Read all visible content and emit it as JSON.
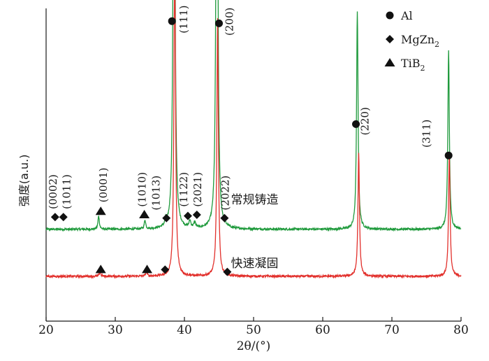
{
  "chart_data": {
    "type": "line",
    "xlabel": "2θ/(°)",
    "ylabel": "强度(a.u.)",
    "xlim": [
      20,
      80
    ],
    "x_ticks": [
      "20",
      "30",
      "40",
      "50",
      "60",
      "70",
      "80"
    ],
    "grid": false,
    "legend": {
      "placement": "top-right",
      "entries": [
        {
          "marker": "circle",
          "label": "Al",
          "phase": "al"
        },
        {
          "marker": "diamond",
          "label": "MgZn",
          "sub": "2",
          "phase": "mgzn2"
        },
        {
          "marker": "triangle",
          "label": "TiB",
          "sub": "2",
          "phase": "tib2"
        }
      ]
    },
    "series": [
      {
        "name": "常规铸造",
        "color": "#1f9a3c",
        "baseline": 0.62,
        "peaks": [
          {
            "x": 27.6,
            "h": 0.12,
            "w": 0.12
          },
          {
            "x": 34.3,
            "h": 0.08,
            "w": 0.12
          },
          {
            "x": 37.3,
            "h": 0.05,
            "w": 0.12
          },
          {
            "x": 38.5,
            "h": 6.0,
            "w": 0.13
          },
          {
            "x": 40.8,
            "h": 0.06,
            "w": 0.15
          },
          {
            "x": 41.5,
            "h": 0.05,
            "w": 0.15
          },
          {
            "x": 44.7,
            "h": 6.0,
            "w": 0.13
          },
          {
            "x": 65.0,
            "h": 1.95,
            "w": 0.13
          },
          {
            "x": 78.2,
            "h": 1.6,
            "w": 0.13
          }
        ],
        "label_x": 44.5,
        "label_y": 0.85
      },
      {
        "name": "快速凝固",
        "color": "#e2302c",
        "baseline": 0.2,
        "peaks": [
          {
            "x": 27.8,
            "h": 0.04,
            "w": 0.12
          },
          {
            "x": 34.5,
            "h": 0.04,
            "w": 0.12
          },
          {
            "x": 38.6,
            "h": 3.1,
            "w": 0.13
          },
          {
            "x": 44.8,
            "h": 2.3,
            "w": 0.13
          },
          {
            "x": 65.2,
            "h": 1.1,
            "w": 0.13
          },
          {
            "x": 78.3,
            "h": 1.1,
            "w": 0.13
          }
        ],
        "label_x": 44.5,
        "label_y": 0.28
      }
    ],
    "phase_markers": [
      {
        "phase": "mgzn2",
        "x": 21.3,
        "y": 0.73
      },
      {
        "phase": "mgzn2",
        "x": 22.5,
        "y": 0.73
      },
      {
        "phase": "tib2",
        "x": 27.9,
        "y": 0.78
      },
      {
        "phase": "tib2",
        "x": 34.2,
        "y": 0.75
      },
      {
        "phase": "mgzn2",
        "x": 37.4,
        "y": 0.72
      },
      {
        "phase": "mgzn2",
        "x": 40.5,
        "y": 0.74
      },
      {
        "phase": "mgzn2",
        "x": 41.8,
        "y": 0.75
      },
      {
        "phase": "mgzn2",
        "x": 45.8,
        "y": 0.72
      },
      {
        "phase": "al",
        "x": 38.2,
        "y": 2.48
      },
      {
        "phase": "al",
        "x": 45.0,
        "y": 2.46
      },
      {
        "phase": "al",
        "x": 64.8,
        "y": 1.56
      },
      {
        "phase": "al",
        "x": 78.2,
        "y": 1.28
      },
      {
        "phase": "tib2",
        "x": 27.9,
        "y": 0.26
      },
      {
        "phase": "tib2",
        "x": 34.6,
        "y": 0.26
      },
      {
        "phase": "mgzn2",
        "x": 37.2,
        "y": 0.26
      },
      {
        "phase": "mgzn2",
        "x": 46.2,
        "y": 0.24
      }
    ],
    "annotations": [
      {
        "text": "(0002)",
        "x": 21.5,
        "y": 0.8
      },
      {
        "text": "(1011)",
        "x": 23.5,
        "y": 0.8
      },
      {
        "text": "(0001)",
        "x": 28.8,
        "y": 0.86
      },
      {
        "text": "(1010)",
        "x": 34.4,
        "y": 0.82
      },
      {
        "text": "(1013)",
        "x": 36.4,
        "y": 0.79
      },
      {
        "text": "(1122)",
        "x": 40.4,
        "y": 0.82
      },
      {
        "text": "(2021)",
        "x": 42.4,
        "y": 0.82
      },
      {
        "text": "(2022)",
        "x": 46.4,
        "y": 0.79
      },
      {
        "text": "(111)",
        "x": 40.4,
        "y": 2.37
      },
      {
        "text": "(200)",
        "x": 47.0,
        "y": 2.35
      },
      {
        "text": "(220)",
        "x": 66.6,
        "y": 1.46
      },
      {
        "text": "(311)",
        "x": 75.5,
        "y": 1.35
      }
    ]
  }
}
